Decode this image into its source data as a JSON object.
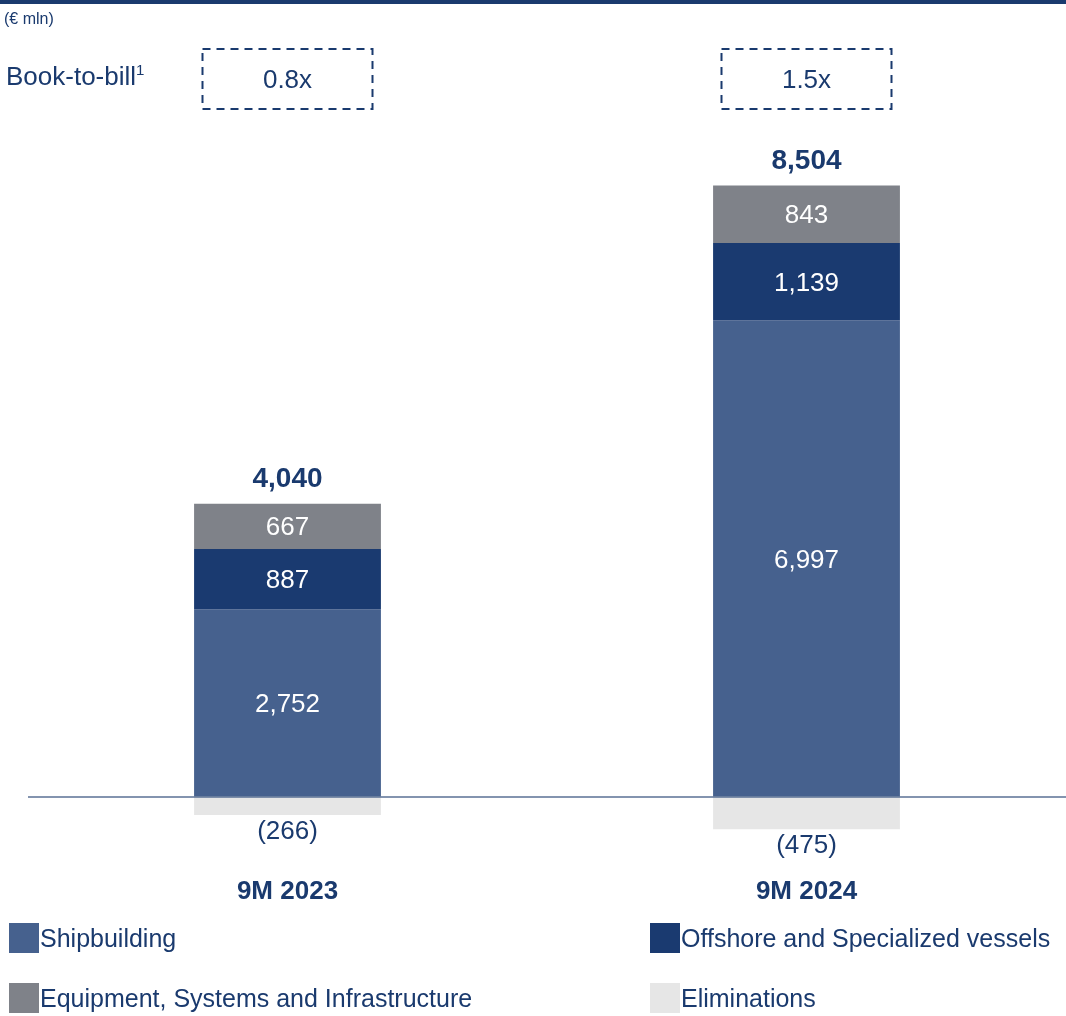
{
  "chart_data": {
    "type": "bar",
    "stacked": true,
    "categories": [
      "9M 2023",
      "9M 2024"
    ],
    "ref_lines": [
      {
        "axis": "y",
        "value": 0,
        "color": "#5a7194"
      }
    ],
    "series": [
      {
        "name": "Shipbuilding",
        "color": "#46618e",
        "values": [
          2752,
          6997
        ],
        "value_labels": [
          "2,752",
          "6,997"
        ]
      },
      {
        "name": "Offshore and Specialized vessels",
        "color": "#1a3a70",
        "values": [
          887,
          1139
        ],
        "value_labels": [
          "887",
          "1,139"
        ]
      },
      {
        "name": "Equipment, Systems and Infrastructure",
        "color": "#7f8289",
        "values": [
          667,
          843
        ],
        "value_labels": [
          "667",
          "843"
        ]
      },
      {
        "name": "Eliminations",
        "color": "#e6e6e6",
        "values": [
          -266,
          -475
        ],
        "value_labels": [
          "(266)",
          "(475)"
        ]
      }
    ],
    "totals": [
      "4,040",
      "8,504"
    ],
    "annotations": [
      "(€ mln)",
      "Book-to-bill$^{1}$",
      "0.8x",
      "1.5x"
    ],
    "legend": "bottom"
  }
}
